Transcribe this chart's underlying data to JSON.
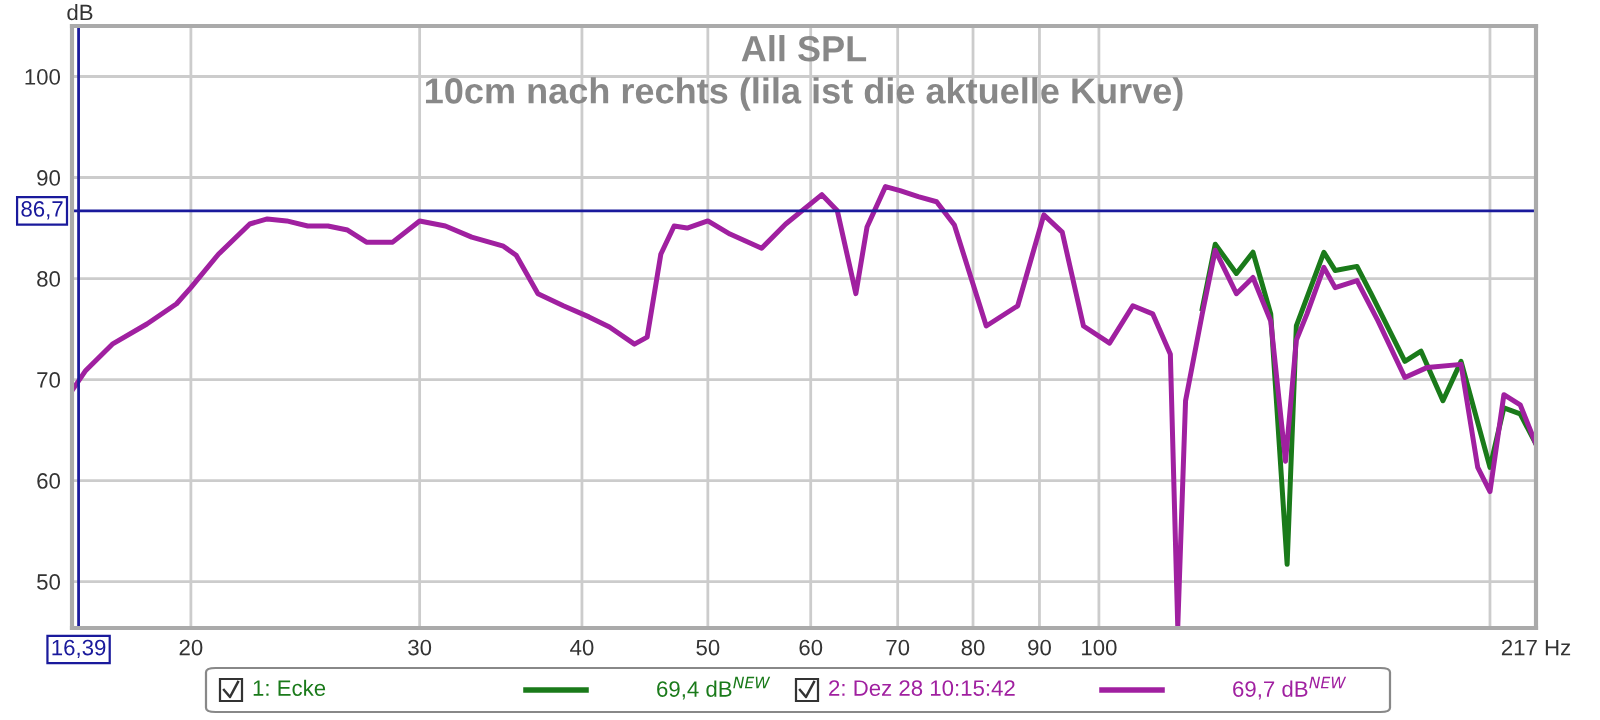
{
  "chart_data": {
    "type": "line",
    "title": "All SPL",
    "subtitle": "10cm nach rechts (lila ist die aktuelle Kurve)",
    "ylabel": "dB",
    "log": "x",
    "grid": true,
    "legend": "bottom",
    "line_style": "solid",
    "marker": "none",
    "xlim": [
      16.2,
      217
    ],
    "ylim": [
      45.4,
      105
    ],
    "xticks": [
      20,
      30,
      40,
      50,
      60,
      70,
      80,
      90,
      100,
      {
        "value": 200,
        "label": null
      },
      {
        "value": 217,
        "label": "217 Hz"
      }
    ],
    "yticks": [
      50,
      60,
      70,
      80,
      90,
      100
    ],
    "ref_lines": [
      {
        "axis": "y",
        "value": 86.7,
        "label": "86,7",
        "color": "#1a1a9c"
      },
      {
        "axis": "x",
        "value": 16.39,
        "label": "16,39",
        "color": "#1a1a9c"
      }
    ],
    "annotations": [
      "69,4 dB$^{NEW}$",
      "69,7 dB$^{NEW}$"
    ],
    "series": [
      {
        "name": "1: Ecke",
        "color": "#1a7a1a",
        "x": [
          120.1,
          122.9,
          127.6,
          131.4,
          135.6,
          139.6,
          141.9,
          149,
          152,
          158,
          162,
          172,
          177,
          184,
          190,
          200,
          205,
          211,
          217
        ],
        "values": [
          77,
          83.4,
          80.5,
          82.6,
          76.5,
          51.7,
          75.3,
          82.6,
          80.8,
          81.2,
          78.5,
          71.8,
          72.8,
          67.9,
          71.8,
          61.3,
          67.2,
          66.6,
          63.6
        ]
      },
      {
        "name": "2: Dez 28 10:15:42",
        "color": "#a020a0",
        "x": [
          16.2,
          16.6,
          17.4,
          18.5,
          19.5,
          20,
          21,
          22.2,
          22.9,
          23.7,
          24.6,
          25.5,
          26.4,
          27.3,
          28.6,
          30,
          31.4,
          32.9,
          34.8,
          35.6,
          37,
          38.7,
          40.5,
          42,
          43.9,
          44.9,
          46,
          47.1,
          48.2,
          50,
          52,
          55,
          57.4,
          61.2,
          62.9,
          65,
          66.3,
          68.5,
          70.3,
          72.6,
          75,
          77.4,
          81.9,
          86.6,
          90.7,
          93.7,
          97.3,
          101.9,
          106.2,
          110,
          113.5,
          115,
          116.6,
          120.1,
          122.9,
          127.6,
          131.4,
          135.6,
          139.2,
          141.9,
          144.6,
          149,
          152,
          158,
          164,
          172,
          179,
          190,
          195.7,
          200,
          205,
          211,
          217
        ],
        "values": [
          68.9,
          70.9,
          73.5,
          75.5,
          77.5,
          79.1,
          82.4,
          85.4,
          85.9,
          85.7,
          85.2,
          85.2,
          84.8,
          83.6,
          83.6,
          85.7,
          85.2,
          84.1,
          83.2,
          82.3,
          78.5,
          77.3,
          76.2,
          75.2,
          73.5,
          74.2,
          82.4,
          85.2,
          85,
          85.7,
          84.4,
          83,
          85.4,
          88.3,
          86.7,
          78.5,
          85.1,
          89.1,
          88.7,
          88.1,
          87.6,
          85.3,
          75.3,
          77.3,
          86.3,
          84.6,
          75.3,
          73.6,
          77.3,
          76.5,
          72.5,
          45.5,
          67.9,
          76.5,
          82.8,
          78.5,
          80.1,
          75.8,
          61.9,
          73.9,
          76.5,
          81.1,
          79.1,
          79.8,
          75.8,
          70.2,
          71.2,
          71.5,
          61.3,
          58.9,
          68.5,
          67.5,
          63.6
        ]
      }
    ]
  }
}
